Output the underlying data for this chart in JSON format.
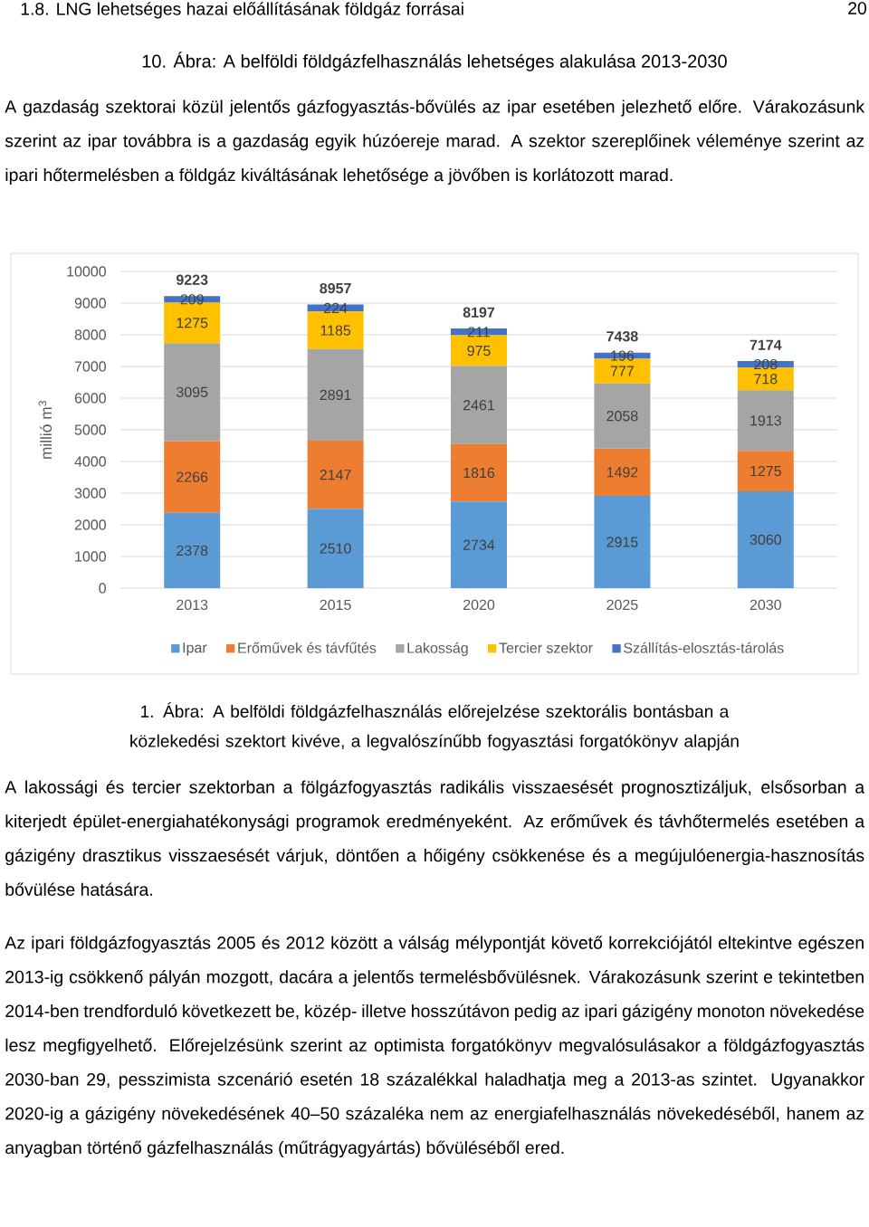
{
  "chart_data": {
    "type": "bar",
    "stacked": true,
    "ylabel": "millió m$^{3}$",
    "categories": [
      "2013",
      "2015",
      "2020",
      "2025",
      "2030"
    ],
    "series": [
      {
        "name": "Ipar",
        "color": "#5b9bd5",
        "values": [
          2378,
          2510,
          2734,
          2915,
          3060
        ]
      },
      {
        "name": "Erőművek és távfűtés",
        "color": "#ed7d31",
        "values": [
          2266,
          2147,
          1816,
          1492,
          1275
        ]
      },
      {
        "name": "Lakosság",
        "color": "#a5a5a5",
        "values": [
          3095,
          2891,
          2461,
          2058,
          1913
        ]
      },
      {
        "name": "Tercier szektor",
        "color": "#ffc000",
        "values": [
          1275,
          1185,
          975,
          777,
          718
        ]
      },
      {
        "name": "Szállítás-elosztás-tárolás",
        "color": "#4472c4",
        "values": [
          209,
          224,
          211,
          196,
          208
        ]
      }
    ],
    "totals": [
      "9223",
      "8957",
      "8197",
      "7438",
      "7174"
    ],
    "ylim": [
      0,
      10000
    ],
    "yticks": [
      0,
      1000,
      2000,
      3000,
      4000,
      5000,
      6000,
      7000,
      8000,
      9000,
      10000
    ],
    "grid": "y",
    "legend": "bottom",
    "data_labels": true,
    "annotations": [
      "1.8. LNG lehetséges hazai előállításának földgáz forrásai",
      "20",
      "10. Ábra: A belföldi földgázfelhasználás lehetséges alakulása 2013-2030",
      "A gazdaság szektorai közül jelentős gázfogyasztás-bővülés az ipar esetében jelezhető előre. Várakozásunk szerint az ipar továbbra is a gazdaság egyik húzóereje marad. A szektor szereplőinek véleménye szerint az ipari hőtermelésben a földgáz kiváltásának lehetősége a jövőben is korlátozott marad.",
      "1. Ábra: A belföldi földgázfelhasználás előrejelzése szektorális bontásban a közlekedési szektort kivéve, a legvalószínűbb fogyasztási forgatókönyv alapján",
      "A lakossági és tercier szektorban a fölgázfogyasztás radikális visszaesését prognosztizáljuk, elsősorban a kiterjedt épület-energiahatékonysági programok eredményeként. Az erőművek és távhőtermelés esetében a gázigény drasztikus visszaesését várjuk, döntően a hőigény csökkenése és a megújulóenergia-hasznosítás bővülése hatására.",
      "Az ipari földgázfogyasztás 2005 és 2012 között a válság mélypontját követő korrekciójától eltekintve egészen 2013-ig csökkenő pályán mozgott, dacára a jelentős termelésbővülésnek. Várakozásunk szerint e tekintetben 2014-ben trendforduló következett be, közép- illetve hosszútávon pedig az ipari gázigény monoton növekedése lesz megfigyelhető. Előrejelzésünk szerint az optimista forgatókönyv megvalósulásakor a földgázfogyasztás 2030-ban 29, pesszimista szcenárió esetén 18 százalékkal haladhatja meg a 2013-as szintet. Ugyanakkor 2020-ig a gázigény növekedésének 40–50 százaléka nem az energiafelhasználás növekedéséből, hanem az anyagban történő gázfelhasználás (műtrágyagyártás) bővüléséből ered."
    ]
  }
}
